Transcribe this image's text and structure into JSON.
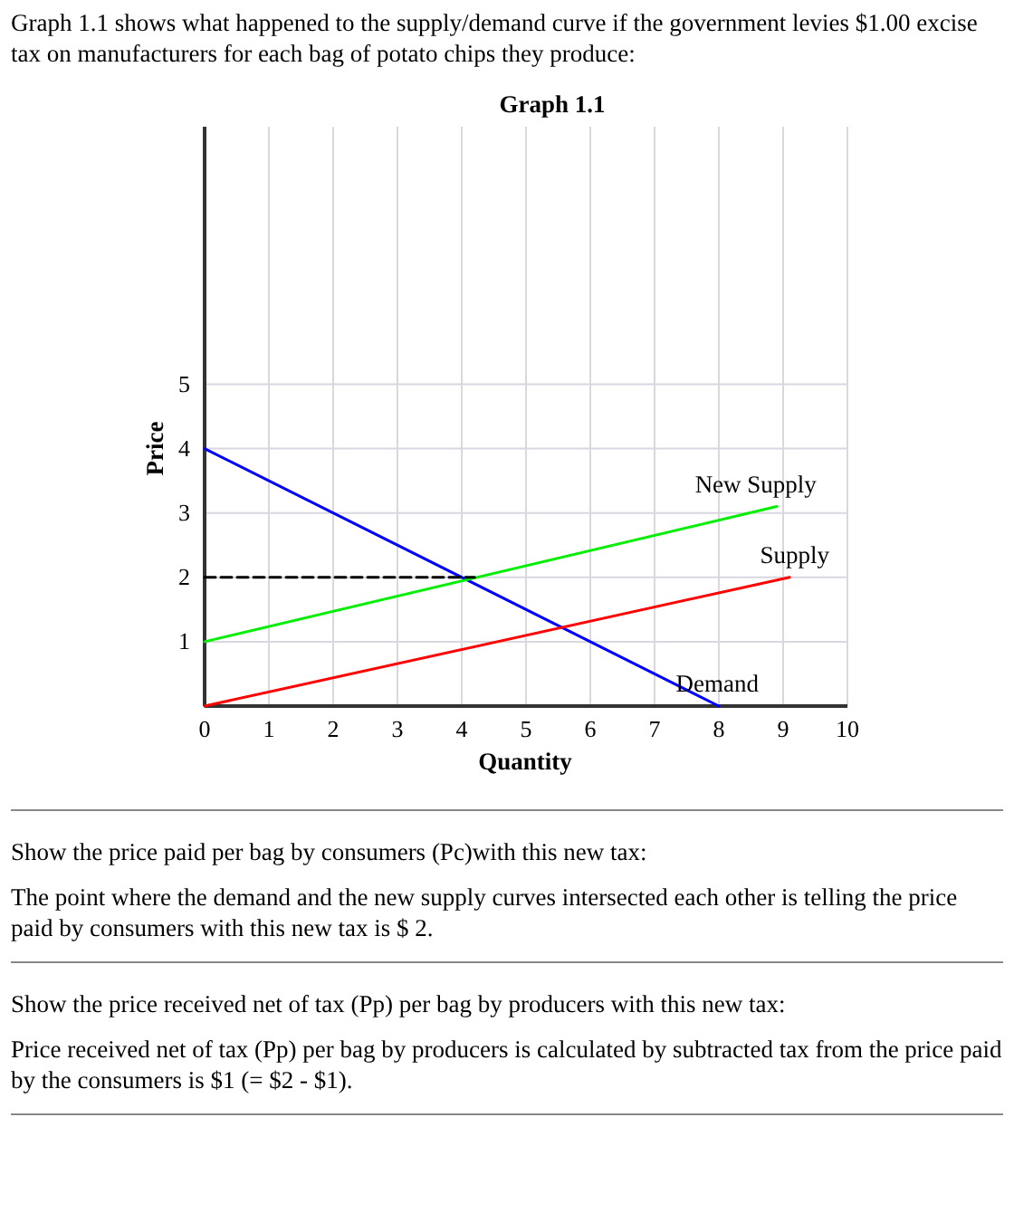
{
  "chart_data": {
    "type": "line",
    "title": "Graph 1.1",
    "xlabel": "Quantity",
    "ylabel": "Price",
    "xlim": [
      0,
      10
    ],
    "ylim": [
      0,
      9
    ],
    "xticks": [
      0,
      1,
      2,
      3,
      4,
      5,
      6,
      7,
      8,
      9,
      10
    ],
    "yticks": [
      {
        "value": 0,
        "label": null
      },
      1,
      2,
      3,
      4,
      5
    ],
    "grid": true,
    "legend": false,
    "marker": "none",
    "series": [
      {
        "name": "Demand",
        "color": "#0000ff",
        "x": [
          0,
          8
        ],
        "values": [
          4,
          0
        ]
      },
      {
        "name": "New Supply",
        "color": "#00ee00",
        "x": [
          0,
          8.9
        ],
        "values": [
          1,
          3.1
        ]
      },
      {
        "name": "Supply",
        "color": "#ff0000",
        "x": [
          0,
          9.1
        ],
        "values": [
          0,
          2
        ]
      },
      {
        "color": "#000000",
        "x": [
          0,
          4.2
        ],
        "values": [
          2,
          2
        ],
        "line_style": "dashed"
      }
    ],
    "annotations": [
      "Graph 1.1 shows what happened to the supply/demand curve if the government levies $1.00 excise tax on manufacturers for each bag of potato chips they produce:",
      "Show the price paid per bag by consumers (Pc)with this new tax:",
      "The point where the demand and the new supply curves intersected each other is telling the price paid by consumers with this new tax is $ 2.",
      "Show the price received net of tax (Pp) per bag by producers with this new tax:",
      "Price received net of tax (Pp) per bag by producers is calculated by subtracted tax from the price paid by the consumers is $1 (= $2 - $1)."
    ]
  }
}
